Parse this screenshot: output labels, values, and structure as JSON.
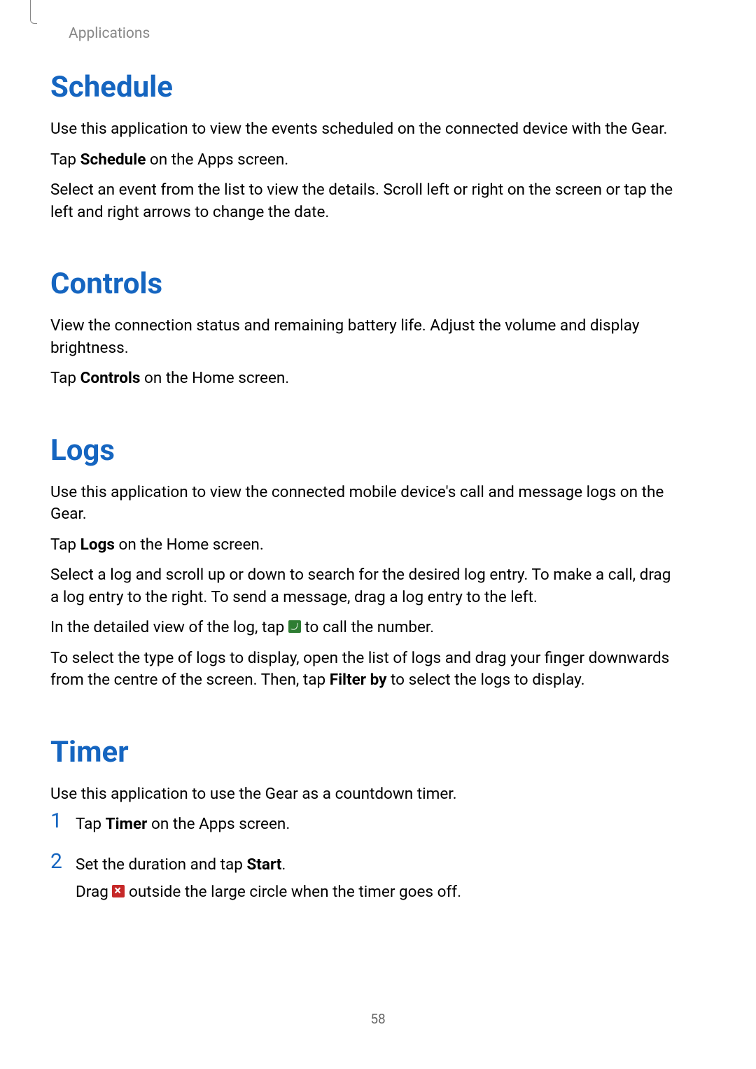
{
  "header": {
    "breadcrumb": "Applications"
  },
  "sections": {
    "schedule": {
      "heading": "Schedule",
      "p1": "Use this application to view the events scheduled on the connected device with the Gear.",
      "p2_pre": "Tap ",
      "p2_bold": "Schedule",
      "p2_post": " on the Apps screen.",
      "p3": "Select an event from the list to view the details. Scroll left or right on the screen or tap the left and right arrows to change the date."
    },
    "controls": {
      "heading": "Controls",
      "p1": "View the connection status and remaining battery life. Adjust the volume and display brightness.",
      "p2_pre": "Tap ",
      "p2_bold": "Controls",
      "p2_post": " on the Home screen."
    },
    "logs": {
      "heading": "Logs",
      "p1": "Use this application to view the connected mobile device's call and message logs on the Gear.",
      "p2_pre": "Tap ",
      "p2_bold": "Logs",
      "p2_post": " on the Home screen.",
      "p3": "Select a log and scroll up or down to search for the desired log entry. To make a call, drag a log entry to the right. To send a message, drag a log entry to the left.",
      "p4_pre": "In the detailed view of the log, tap ",
      "p4_post": " to call the number.",
      "p5_pre": "To select the type of logs to display, open the list of logs and drag your finger downwards from the centre of the screen. Then, tap ",
      "p5_bold": "Filter by",
      "p5_post": " to select the logs to display."
    },
    "timer": {
      "heading": "Timer",
      "p1": "Use this application to use the Gear as a countdown timer.",
      "items": {
        "n1": "1",
        "i1_pre": "Tap ",
        "i1_bold": "Timer",
        "i1_post": " on the Apps screen.",
        "n2": "2",
        "i2a_pre": "Set the duration and tap ",
        "i2a_bold": "Start",
        "i2a_post": ".",
        "i2b_pre": "Drag ",
        "i2b_post": " outside the large circle when the timer goes off."
      }
    }
  },
  "pageNumber": "58",
  "colors": {
    "heading": "#1565c0",
    "body": "#000000",
    "muted": "#888888",
    "phoneIcon": "#2e7d32",
    "xIcon": "#c62828"
  },
  "typography": {
    "heading_fontsize": 42,
    "body_fontsize": 22.5,
    "breadcrumb_fontsize": 21,
    "number_fontsize": 30,
    "page_number_fontsize": 19
  }
}
